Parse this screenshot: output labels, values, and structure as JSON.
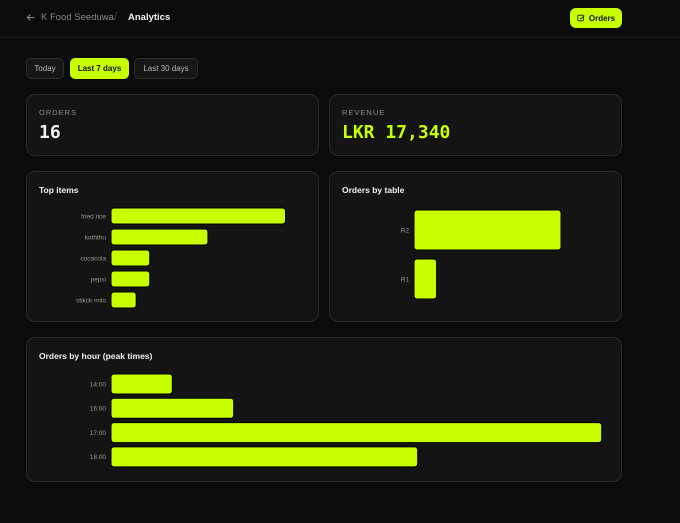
{
  "header": {
    "back_label": "K Food Seeduwa",
    "separator": "/",
    "title": "Analytics",
    "orders_button": "Orders"
  },
  "ranges": [
    {
      "label": "Today",
      "active": false
    },
    {
      "label": "Last 7 days",
      "active": true
    },
    {
      "label": "Last 30 days",
      "active": false
    }
  ],
  "kpis": {
    "orders": {
      "label": "ORDERS",
      "value": "16"
    },
    "revenue": {
      "label": "REVENUE",
      "value": "LKR 17,340"
    }
  },
  "colors": {
    "accent": "#c8ff00",
    "background": "#0b0b0b",
    "card": "#141414"
  },
  "chart_data": [
    {
      "type": "bar",
      "orientation": "horizontal",
      "title": "Top items",
      "categories": [
        "fried rice",
        "koththu",
        "cocacola",
        "pepsi",
        "stikck milo"
      ],
      "values": [
        9,
        5,
        2,
        2,
        1.3
      ],
      "xlim": [
        0,
        9.8
      ],
      "grid": false,
      "legend": "none"
    },
    {
      "type": "bar",
      "orientation": "horizontal",
      "title": "Orders by table",
      "categories": [
        "R2",
        "R1"
      ],
      "values": [
        13,
        2
      ],
      "xlim": [
        0,
        16.8
      ],
      "grid": false,
      "legend": "none"
    },
    {
      "type": "bar",
      "orientation": "horizontal",
      "title": "Orders by hour (peak times)",
      "categories": [
        "14:00",
        "16:00",
        "17:00",
        "18:00"
      ],
      "values": [
        2,
        4,
        16,
        10
      ],
      "xlim": [
        0,
        16.4
      ],
      "grid": false,
      "legend": "none"
    }
  ]
}
